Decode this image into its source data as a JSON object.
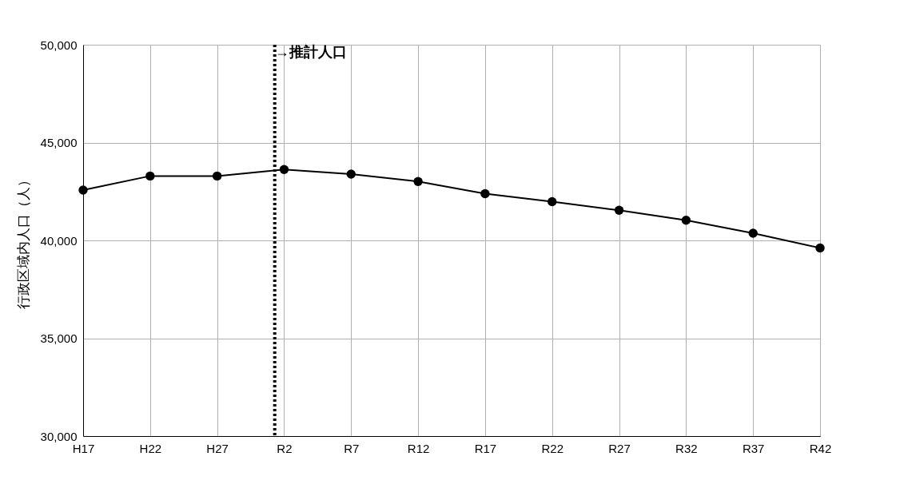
{
  "chart_data": {
    "type": "line",
    "ylabel": "行政区域内人口（人）",
    "categories": [
      "H17",
      "H22",
      "H27",
      "R2",
      "R7",
      "R12",
      "R17",
      "R22",
      "R27",
      "R32",
      "R37",
      "R42"
    ],
    "series": [
      {
        "color": "#000000",
        "values": [
          42570,
          43290,
          43290,
          43620,
          43390,
          43010,
          42390,
          41980,
          41540,
          41030,
          40370,
          39610
        ]
      }
    ],
    "ylim": [
      30000,
      50000
    ],
    "yticks": [
      {
        "value": 30000,
        "label": "30,000"
      },
      {
        "value": 35000,
        "label": "35,000"
      },
      {
        "value": 40000,
        "label": "40,000"
      },
      {
        "value": 45000,
        "label": "45,000"
      },
      {
        "value": 50000,
        "label": "50,000"
      }
    ],
    "grid": true,
    "marker": "circle",
    "line_style": "solid",
    "ref_lines": [
      {
        "axis": "x",
        "value": "R2",
        "label": "→推計人口",
        "color": "#000000",
        "line_style": "dotted"
      }
    ]
  }
}
